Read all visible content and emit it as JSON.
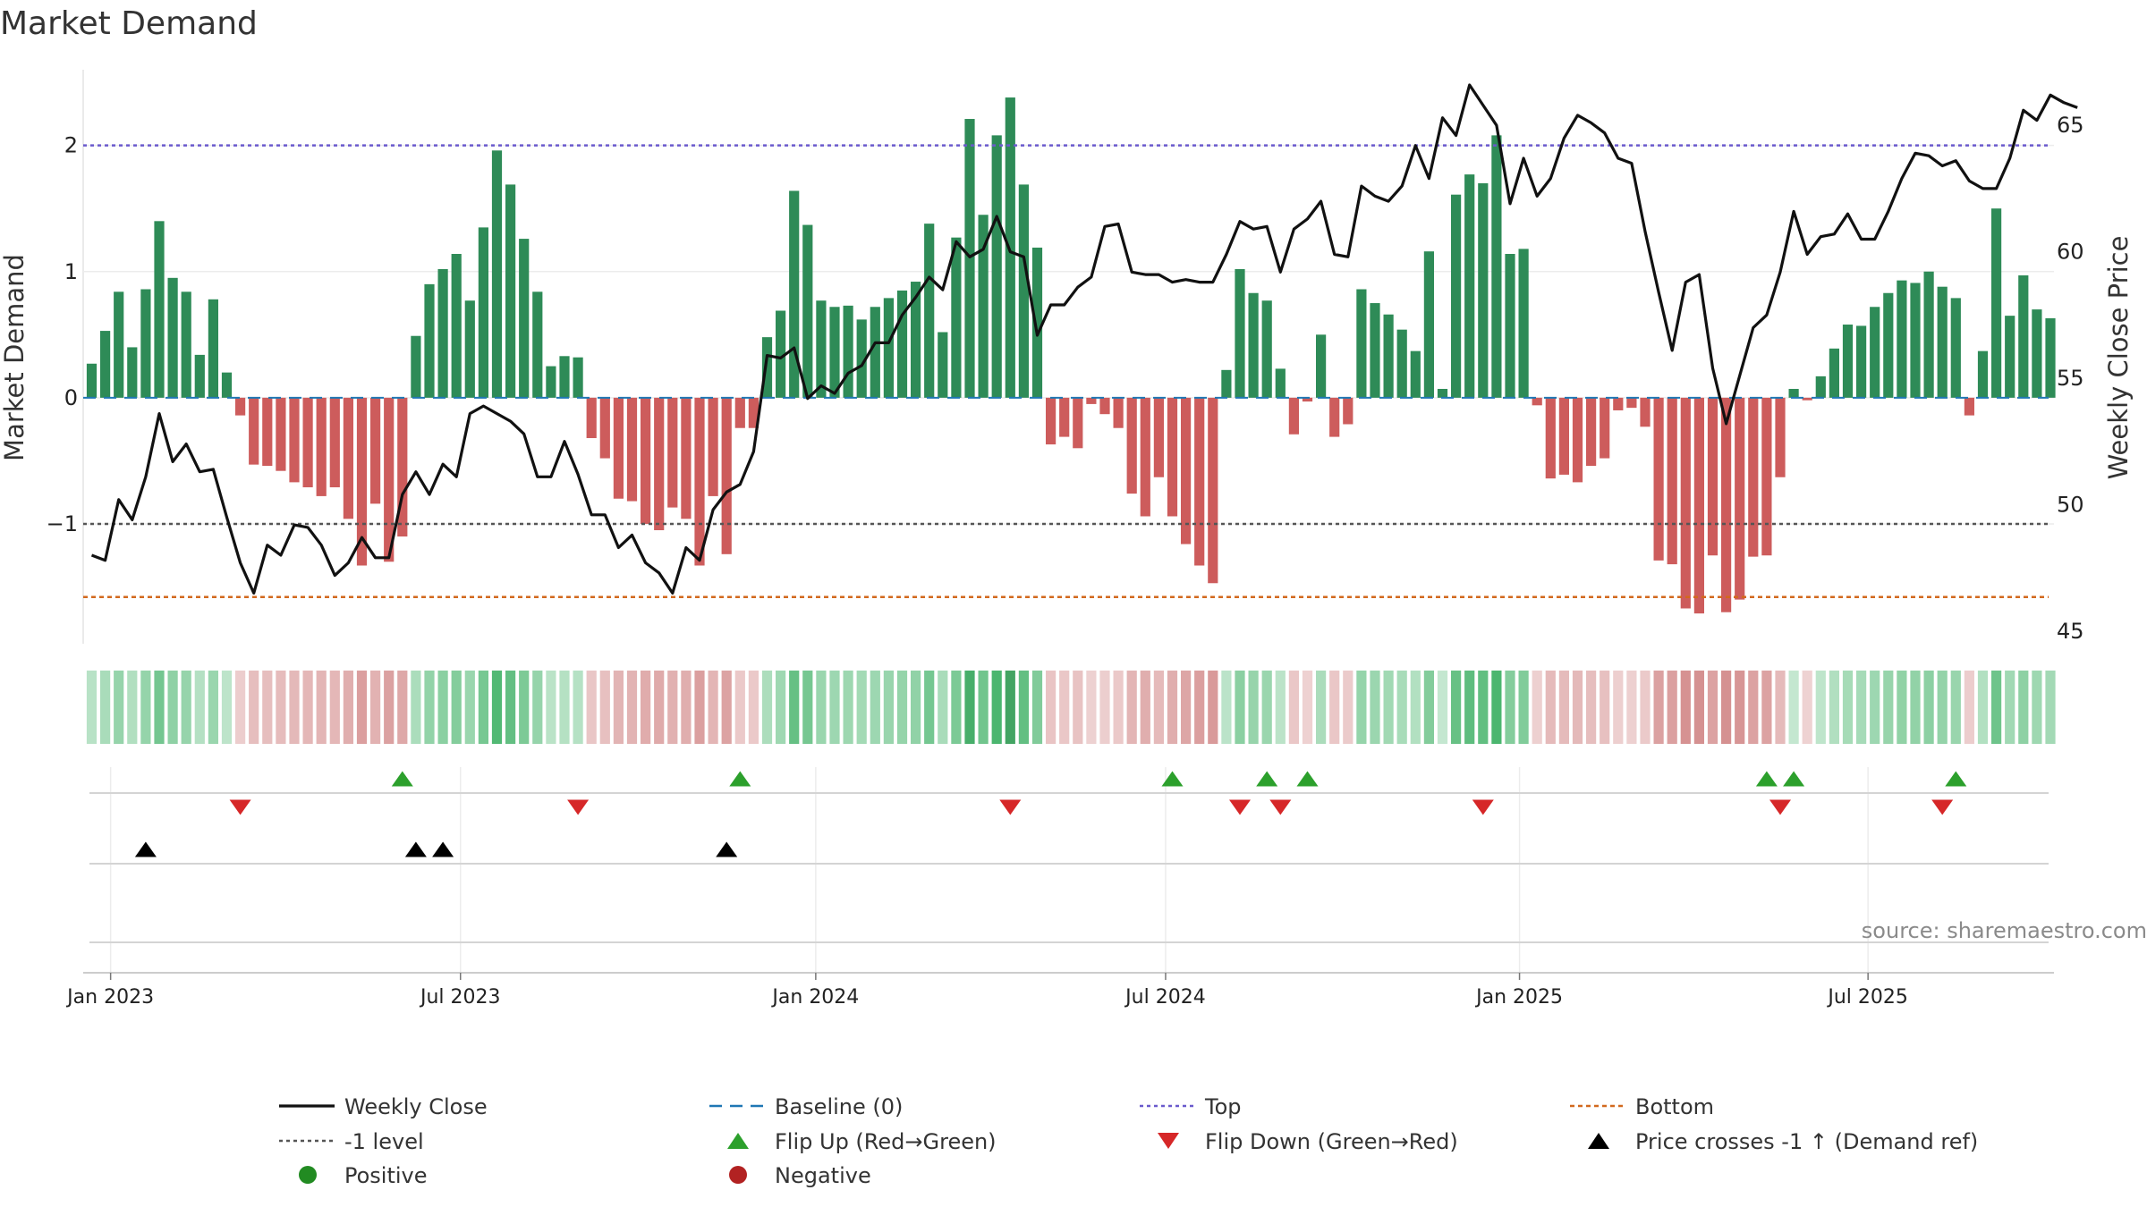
{
  "chart_data": {
    "type": "bar",
    "title": "Market Demand",
    "ylabel": "Market Demand",
    "y2label": "Weekly Close Price",
    "ylim": [
      -1.95,
      2.6
    ],
    "y2lim": [
      44.5,
      67.2
    ],
    "yticks": [
      "2",
      "1",
      "0",
      "−1"
    ],
    "yticks_values": [
      2,
      1,
      0,
      -1
    ],
    "y2ticks": [
      "65",
      "60",
      "55",
      "50",
      "45"
    ],
    "y2ticks_values": [
      65,
      60,
      55,
      50,
      45
    ],
    "xticks": [
      {
        "label": "Jan 2023",
        "week": 1.4
      },
      {
        "label": "Jul 2023",
        "week": 27.3
      },
      {
        "label": "Jan 2024",
        "week": 53.6
      },
      {
        "label": "Jul 2024",
        "week": 79.5
      },
      {
        "label": "Jan 2025",
        "week": 105.7
      },
      {
        "label": "Jul 2025",
        "week": 131.5
      }
    ],
    "reference_lines": {
      "top": 2.0,
      "minus_one": -1.0,
      "bottom": -1.58,
      "baseline": 0
    },
    "demand": [
      0.27,
      0.53,
      0.84,
      0.4,
      0.86,
      1.4,
      0.95,
      0.84,
      0.34,
      0.78,
      0.2,
      -0.14,
      -0.53,
      -0.54,
      -0.58,
      -0.67,
      -0.71,
      -0.78,
      -0.71,
      -0.96,
      -1.33,
      -0.84,
      -1.3,
      -1.1,
      0.49,
      0.9,
      1.02,
      1.14,
      0.77,
      1.35,
      1.96,
      1.69,
      1.26,
      0.84,
      0.25,
      0.33,
      0.32,
      -0.32,
      -0.48,
      -0.8,
      -0.82,
      -1.0,
      -1.05,
      -0.87,
      -0.96,
      -1.33,
      -0.78,
      -1.24,
      -0.24,
      -0.24,
      0.48,
      0.69,
      1.64,
      1.37,
      0.77,
      0.72,
      0.73,
      0.62,
      0.72,
      0.79,
      0.85,
      0.92,
      1.38,
      0.52,
      1.27,
      2.21,
      1.45,
      2.08,
      2.38,
      1.69,
      1.19,
      -0.37,
      -0.31,
      -0.4,
      -0.05,
      -0.13,
      -0.24,
      -0.76,
      -0.94,
      -0.63,
      -0.94,
      -1.16,
      -1.33,
      -1.47,
      0.22,
      1.02,
      0.83,
      0.77,
      0.23,
      -0.29,
      -0.03,
      0.5,
      -0.31,
      -0.21,
      0.86,
      0.75,
      0.66,
      0.54,
      0.37,
      1.16,
      0.07,
      1.61,
      1.77,
      1.7,
      2.08,
      1.14,
      1.18,
      -0.06,
      -0.64,
      -0.61,
      -0.67,
      -0.54,
      -0.48,
      -0.1,
      -0.08,
      -0.23,
      -1.29,
      -1.32,
      -1.67,
      -1.71,
      -1.25,
      -1.7,
      -1.6,
      -1.26,
      -1.25,
      -0.63,
      0.07,
      -0.02,
      0.17,
      0.39,
      0.58,
      0.57,
      0.72,
      0.83,
      0.93,
      0.91,
      1.0,
      0.88,
      0.79,
      -0.14,
      0.37,
      1.5,
      0.65,
      0.97,
      0.7,
      0.63
    ],
    "weekly_close": [
      48.0,
      47.8,
      50.2,
      49.4,
      51.1,
      53.6,
      51.7,
      52.4,
      51.3,
      51.4,
      49.5,
      47.7,
      46.5,
      48.4,
      48.0,
      49.2,
      49.1,
      48.4,
      47.2,
      47.7,
      48.7,
      47.9,
      47.9,
      50.4,
      51.3,
      50.4,
      51.6,
      51.1,
      53.6,
      53.9,
      53.6,
      53.3,
      52.8,
      51.1,
      51.1,
      52.5,
      51.2,
      49.6,
      49.6,
      48.3,
      48.8,
      47.7,
      47.3,
      46.5,
      48.3,
      47.8,
      49.8,
      50.5,
      50.8,
      52.1,
      55.9,
      55.8,
      56.2,
      54.2,
      54.7,
      54.4,
      55.2,
      55.5,
      56.4,
      56.4,
      57.5,
      58.2,
      59.0,
      58.5,
      60.4,
      59.8,
      60.1,
      61.4,
      60.0,
      59.8,
      56.7,
      57.9,
      57.9,
      58.6,
      59.0,
      61.0,
      61.1,
      59.2,
      59.1,
      59.1,
      58.8,
      58.9,
      58.8,
      58.8,
      59.9,
      61.2,
      60.9,
      61.0,
      59.2,
      60.9,
      61.3,
      62.0,
      59.9,
      59.8,
      62.6,
      62.2,
      62.0,
      62.6,
      64.2,
      62.9,
      65.3,
      64.6,
      66.6,
      65.8,
      65.0,
      61.9,
      63.7,
      62.2,
      62.9,
      64.5,
      65.4,
      65.1,
      64.7,
      63.7,
      63.5,
      60.8,
      58.4,
      56.1,
      58.8,
      59.1,
      55.4,
      53.2,
      55.1,
      57.0,
      57.5,
      59.2,
      61.6,
      59.9,
      60.6,
      60.7,
      61.5,
      60.5,
      60.5,
      61.6,
      62.9,
      63.9,
      63.8,
      63.4,
      63.6,
      62.8,
      62.5,
      62.5,
      63.7,
      65.6,
      65.2,
      66.2,
      65.9,
      65.7
    ],
    "flip_up_weeks": [
      23,
      48,
      80,
      87,
      90,
      124,
      126,
      138
    ],
    "flip_down_weeks": [
      11,
      36,
      68,
      85,
      88,
      103,
      125,
      137
    ],
    "price_cross_weeks": [
      4,
      24,
      26,
      47
    ]
  },
  "colors": {
    "positive_bar": "#2e8b57",
    "negative_bar": "#cd5c5c",
    "weekly_close": "#111111",
    "baseline": "#1f77b4",
    "top": "#6a5acd",
    "minus_one": "#555555",
    "bottom": "#d2691e",
    "flip_up": "#2ca02c",
    "flip_down": "#d62728",
    "cross": "#000000",
    "positive_dot": "#228b22",
    "negative_dot": "#b22222"
  },
  "source": "source: sharemaestro.com",
  "legend": [
    {
      "key": "weekly",
      "label": "Weekly Close"
    },
    {
      "key": "baseline",
      "label": "Baseline (0)"
    },
    {
      "key": "top",
      "label": "Top"
    },
    {
      "key": "bottom",
      "label": "Bottom"
    },
    {
      "key": "minus_one",
      "label": "-1 level"
    },
    {
      "key": "flip_up",
      "label": "Flip Up (Red→Green)"
    },
    {
      "key": "flip_down",
      "label": "Flip Down (Green→Red)"
    },
    {
      "key": "cross",
      "label": "Price crosses -1 ↑ (Demand ref)"
    },
    {
      "key": "positive",
      "label": "Positive"
    },
    {
      "key": "negative",
      "label": "Negative"
    }
  ]
}
